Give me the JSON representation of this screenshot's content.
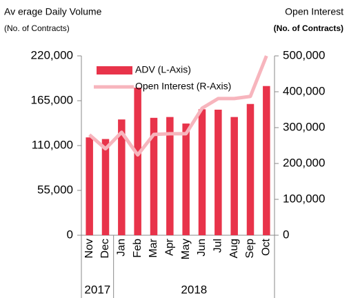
{
  "chart_data": {
    "type": "bar_line",
    "left_title": "Av erage Daily Volume",
    "left_subtitle": "(No. of Contracts)",
    "right_title": "Open Interest",
    "right_subtitle": "(No. of Contracts)",
    "categories": [
      "Nov",
      "Dec",
      "Jan",
      "Feb",
      "Mar",
      "Apr",
      "May",
      "Jun",
      "Jul",
      "Aug",
      "Sep",
      "Oct"
    ],
    "year_groups": [
      {
        "label": "2017",
        "span": 2
      },
      {
        "label": "2018",
        "span": 10
      }
    ],
    "series": [
      {
        "name": "ADV (L-Axis)",
        "color": "#e8334a",
        "kind": "bar",
        "values": [
          120000,
          118000,
          142000,
          181000,
          144000,
          145000,
          137000,
          154500,
          154000,
          145000,
          161000,
          183000
        ]
      },
      {
        "name": "Open Interest (R-Axis)",
        "color": "#f7b5bd",
        "kind": "line",
        "axis": "y2",
        "values": [
          280000,
          241000,
          287000,
          224000,
          281000,
          283000,
          283000,
          354000,
          381000,
          381000,
          387000,
          500000
        ]
      }
    ],
    "ylim": [
      0,
      220000
    ],
    "yticks": [
      0,
      {
        "value": 55000,
        "label": "55,000"
      },
      {
        "value": 110000,
        "label": "110,000"
      },
      {
        "value": 165000,
        "label": "165,000"
      },
      {
        "value": 220000,
        "label": "220,000"
      }
    ],
    "y2lim": [
      0,
      500000
    ],
    "y2ticks": [
      0,
      {
        "value": 100000,
        "label": "100,000"
      },
      {
        "value": 200000,
        "label": "200,000"
      },
      {
        "value": 300000,
        "label": "300,000"
      },
      {
        "value": 400000,
        "label": "400,000"
      },
      {
        "value": 500000,
        "label": "500,000"
      }
    ],
    "legend": "upper-left"
  }
}
